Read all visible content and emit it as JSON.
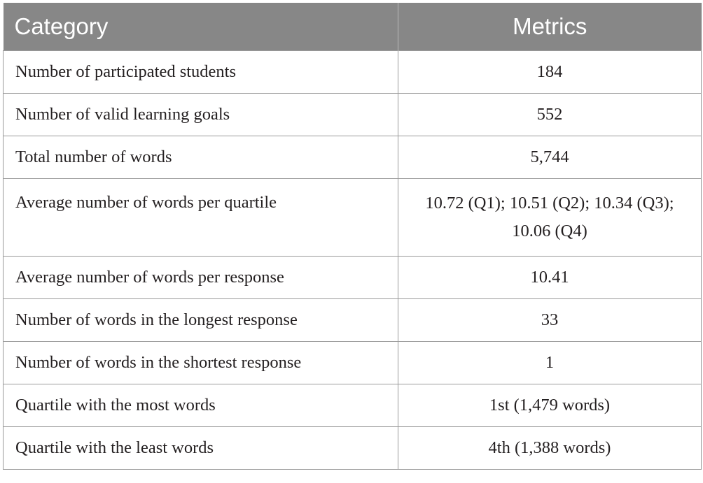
{
  "table": {
    "headers": [
      "Category",
      "Metrics"
    ],
    "rows": [
      {
        "category": "Number of participated students",
        "metric": "184"
      },
      {
        "category": "Number of valid learning goals",
        "metric": "552"
      },
      {
        "category": "Total number of words",
        "metric": "5,744"
      },
      {
        "category": "Average number of words per quartile",
        "metric": "10.72 (Q1); 10.51 (Q2); 10.34 (Q3); 10.06 (Q4)"
      },
      {
        "category": "Average number of words per response",
        "metric": "10.41"
      },
      {
        "category": "Number of words in the longest response",
        "metric": "33"
      },
      {
        "category": "Number of words in the shortest response",
        "metric": "1"
      },
      {
        "category": "Quartile with the most words",
        "metric": "1st (1,479 words)"
      },
      {
        "category": "Quartile with the least words",
        "metric": "4th (1,388 words)"
      }
    ]
  },
  "colors": {
    "header_bg": "#878787",
    "header_text": "#ffffff",
    "border": "#9a9a9a",
    "body_text": "#231f20"
  }
}
